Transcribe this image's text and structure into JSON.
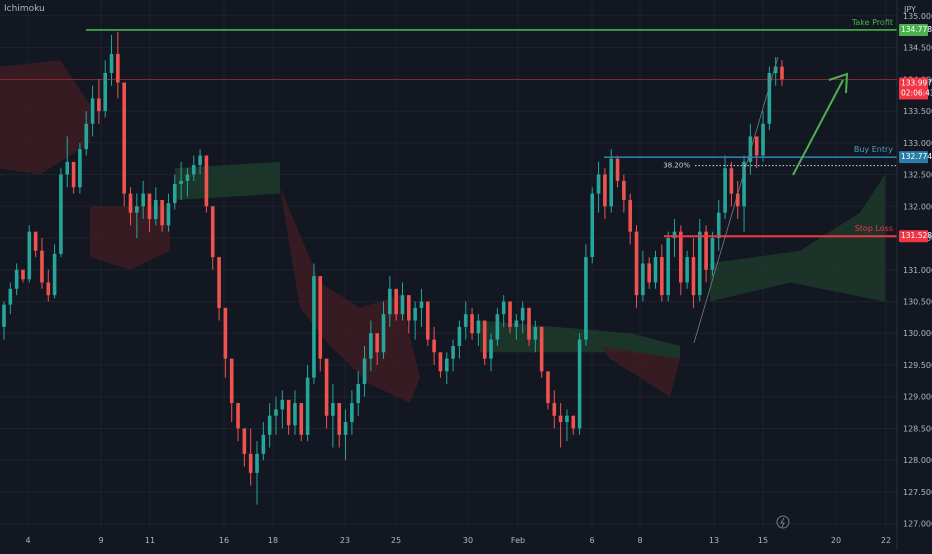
{
  "indicator_name": "Ichimoku",
  "currency": "JPY",
  "annotations": {
    "take_profit_label": "Take Profit",
    "buy_entry_label": "Buy Entry",
    "stop_loss_label": "Stop Loss",
    "fib_label": "38.20%"
  },
  "price_tags": {
    "take_profit": "134.778",
    "buy_entry": "132.774",
    "stop_loss": "131.528",
    "last_price": "133.997",
    "countdown": "02:06:43"
  },
  "colors": {
    "background": "#131722",
    "bull": "#26a69a",
    "bear": "#ef5350",
    "take_profit": "#4caf50",
    "buy_entry": "#2a7fa8",
    "stop_loss": "#f23645",
    "last_price": "#f23645",
    "arrow": "#4caf50",
    "cloud_bull": "#1f3b2c",
    "cloud_bear": "#3d1d22"
  },
  "chart_data": {
    "type": "candlestick",
    "y_axis_ticks": [
      "135.000",
      "134.500",
      "134.000",
      "133.500",
      "133.000",
      "132.500",
      "132.000",
      "131.500",
      "131.000",
      "130.500",
      "130.000",
      "129.500",
      "129.000",
      "128.500",
      "128.000",
      "127.500",
      "127.000"
    ],
    "ylim": [
      126.9,
      135.25
    ],
    "x_axis_labels": [
      "4",
      "9",
      "11",
      "16",
      "18",
      "23",
      "25",
      "30",
      "Feb",
      "6",
      "8",
      "13",
      "15",
      "20",
      "22"
    ],
    "levels": {
      "take_profit": 134.778,
      "buy_entry": 132.774,
      "stop_loss": 131.528,
      "last_price": 133.997,
      "fib_38_2": 132.64
    },
    "candles_ohlc": [
      [
        130.1,
        130.5,
        129.9,
        130.45
      ],
      [
        130.45,
        130.8,
        130.3,
        130.7
      ],
      [
        130.7,
        131.1,
        130.6,
        131.0
      ],
      [
        131.0,
        130.95,
        130.8,
        130.85
      ],
      [
        130.85,
        131.7,
        130.8,
        131.6
      ],
      [
        131.6,
        131.5,
        131.2,
        131.3
      ],
      [
        131.3,
        131.5,
        130.7,
        130.8
      ],
      [
        130.8,
        131.0,
        130.5,
        130.6
      ],
      [
        130.6,
        131.4,
        130.55,
        131.25
      ],
      [
        131.25,
        132.6,
        131.2,
        132.5
      ],
      [
        132.5,
        133.1,
        132.3,
        132.7
      ],
      [
        132.7,
        132.65,
        132.2,
        132.3
      ],
      [
        132.3,
        133.0,
        132.2,
        132.9
      ],
      [
        132.9,
        133.5,
        132.8,
        133.3
      ],
      [
        133.3,
        133.9,
        133.1,
        133.7
      ],
      [
        133.7,
        134.0,
        133.3,
        133.5
      ],
      [
        133.5,
        134.3,
        133.4,
        134.1
      ],
      [
        134.1,
        134.7,
        133.9,
        134.4
      ],
      [
        134.4,
        134.75,
        133.7,
        133.95
      ],
      [
        133.95,
        133.9,
        132.0,
        132.2
      ],
      [
        132.2,
        132.3,
        131.7,
        131.9
      ],
      [
        131.9,
        132.2,
        131.5,
        132.0
      ],
      [
        132.0,
        132.4,
        131.8,
        132.2
      ],
      [
        132.2,
        132.0,
        131.6,
        131.8
      ],
      [
        131.8,
        132.3,
        131.7,
        132.1
      ],
      [
        132.1,
        132.0,
        131.6,
        131.7
      ],
      [
        131.7,
        132.2,
        131.6,
        132.05
      ],
      [
        132.05,
        132.5,
        131.95,
        132.35
      ],
      [
        132.35,
        132.7,
        132.1,
        132.4
      ],
      [
        132.4,
        132.6,
        132.15,
        132.5
      ],
      [
        132.5,
        132.8,
        132.4,
        132.65
      ],
      [
        132.65,
        132.9,
        132.5,
        132.8
      ],
      [
        132.8,
        132.6,
        131.9,
        132.0
      ],
      [
        132.0,
        131.8,
        131.0,
        131.2
      ],
      [
        131.2,
        131.0,
        130.2,
        130.4
      ],
      [
        130.4,
        130.0,
        129.3,
        129.6
      ],
      [
        129.6,
        129.3,
        128.6,
        128.9
      ],
      [
        128.9,
        128.8,
        128.3,
        128.5
      ],
      [
        128.5,
        128.4,
        127.9,
        128.1
      ],
      [
        128.1,
        128.5,
        127.6,
        127.8
      ],
      [
        127.8,
        128.3,
        127.3,
        128.1
      ],
      [
        128.1,
        128.6,
        128.0,
        128.4
      ],
      [
        128.4,
        128.9,
        128.2,
        128.7
      ],
      [
        128.7,
        129.0,
        128.4,
        128.8
      ],
      [
        128.8,
        129.1,
        128.5,
        128.95
      ],
      [
        128.95,
        128.7,
        128.4,
        128.55
      ],
      [
        128.55,
        129.1,
        128.4,
        128.9
      ],
      [
        128.9,
        128.8,
        128.3,
        128.4
      ],
      [
        128.4,
        129.5,
        128.3,
        129.3
      ],
      [
        129.3,
        131.1,
        129.2,
        130.9
      ],
      [
        130.9,
        130.7,
        129.4,
        129.6
      ],
      [
        129.6,
        129.4,
        128.5,
        128.7
      ],
      [
        128.7,
        129.2,
        128.2,
        128.9
      ],
      [
        128.9,
        128.7,
        128.2,
        128.4
      ],
      [
        128.4,
        128.8,
        128.0,
        128.6
      ],
      [
        128.6,
        129.1,
        128.4,
        128.9
      ],
      [
        128.9,
        129.4,
        128.7,
        129.2
      ],
      [
        129.2,
        129.8,
        129.0,
        129.6
      ],
      [
        129.6,
        130.2,
        129.4,
        130.0
      ],
      [
        130.0,
        129.9,
        129.5,
        129.7
      ],
      [
        129.7,
        130.5,
        129.6,
        130.3
      ],
      [
        130.3,
        130.9,
        130.1,
        130.7
      ],
      [
        130.7,
        130.6,
        130.2,
        130.3
      ],
      [
        130.3,
        130.8,
        130.2,
        130.6
      ],
      [
        130.6,
        130.5,
        130.0,
        130.2
      ],
      [
        130.2,
        130.5,
        129.9,
        130.4
      ],
      [
        130.4,
        130.7,
        130.1,
        130.5
      ],
      [
        130.5,
        130.4,
        129.8,
        129.9
      ],
      [
        129.9,
        130.1,
        129.5,
        129.7
      ],
      [
        129.7,
        129.6,
        129.3,
        129.4
      ],
      [
        129.4,
        129.7,
        129.2,
        129.6
      ],
      [
        129.6,
        129.9,
        129.4,
        129.8
      ],
      [
        129.8,
        130.2,
        129.6,
        130.1
      ],
      [
        130.1,
        130.5,
        129.9,
        130.3
      ],
      [
        130.3,
        130.4,
        129.9,
        130.0
      ],
      [
        130.0,
        130.3,
        129.8,
        130.2
      ],
      [
        130.2,
        130.1,
        129.5,
        129.6
      ],
      [
        129.6,
        130.0,
        129.4,
        129.9
      ],
      [
        129.9,
        130.4,
        129.8,
        130.3
      ],
      [
        130.3,
        130.6,
        130.1,
        130.5
      ],
      [
        130.5,
        130.4,
        130.0,
        130.1
      ],
      [
        130.1,
        130.3,
        129.9,
        130.2
      ],
      [
        130.2,
        130.5,
        130.0,
        130.4
      ],
      [
        130.4,
        130.3,
        129.8,
        129.9
      ],
      [
        129.9,
        130.2,
        129.7,
        130.1
      ],
      [
        130.1,
        130.0,
        129.3,
        129.4
      ],
      [
        129.4,
        129.2,
        128.8,
        128.9
      ],
      [
        128.9,
        129.1,
        128.5,
        128.7
      ],
      [
        128.7,
        128.9,
        128.2,
        128.6
      ],
      [
        128.6,
        128.8,
        128.3,
        128.7
      ],
      [
        128.7,
        128.7,
        128.4,
        128.5
      ],
      [
        128.5,
        130.0,
        128.4,
        129.9
      ],
      [
        129.9,
        131.4,
        129.8,
        131.2
      ],
      [
        131.2,
        132.3,
        131.1,
        132.2
      ],
      [
        132.2,
        132.7,
        131.9,
        132.5
      ],
      [
        132.5,
        132.6,
        131.8,
        132.0
      ],
      [
        132.0,
        132.9,
        131.9,
        132.75
      ],
      [
        132.75,
        132.8,
        132.3,
        132.4
      ],
      [
        132.4,
        132.5,
        131.9,
        132.1
      ],
      [
        132.1,
        132.2,
        131.4,
        131.6
      ],
      [
        131.6,
        131.7,
        130.4,
        130.6
      ],
      [
        130.6,
        131.3,
        130.5,
        131.1
      ],
      [
        131.1,
        131.2,
        130.7,
        130.8
      ],
      [
        130.8,
        131.3,
        130.7,
        131.2
      ],
      [
        131.2,
        131.4,
        130.5,
        130.6
      ],
      [
        130.6,
        131.6,
        130.5,
        131.5
      ],
      [
        131.5,
        131.8,
        131.2,
        131.6
      ],
      [
        131.6,
        131.7,
        130.6,
        130.8
      ],
      [
        130.8,
        131.3,
        130.7,
        131.2
      ],
      [
        131.2,
        131.5,
        130.4,
        130.6
      ],
      [
        130.6,
        131.8,
        130.5,
        131.6
      ],
      [
        131.6,
        131.7,
        130.8,
        131.0
      ],
      [
        131.0,
        131.6,
        130.9,
        131.5
      ],
      [
        131.5,
        132.1,
        131.3,
        131.9
      ],
      [
        131.9,
        132.8,
        131.8,
        132.6
      ],
      [
        132.6,
        132.7,
        132.0,
        132.2
      ],
      [
        132.2,
        132.4,
        131.8,
        132.0
      ],
      [
        132.0,
        132.8,
        131.6,
        132.7
      ],
      [
        132.7,
        133.3,
        132.5,
        133.1
      ],
      [
        133.1,
        133.0,
        132.6,
        132.8
      ],
      [
        132.8,
        133.5,
        132.7,
        133.3
      ],
      [
        133.3,
        134.2,
        133.2,
        134.1
      ],
      [
        134.1,
        134.35,
        133.9,
        134.2
      ],
      [
        134.2,
        134.3,
        133.9,
        134.0
      ]
    ]
  }
}
